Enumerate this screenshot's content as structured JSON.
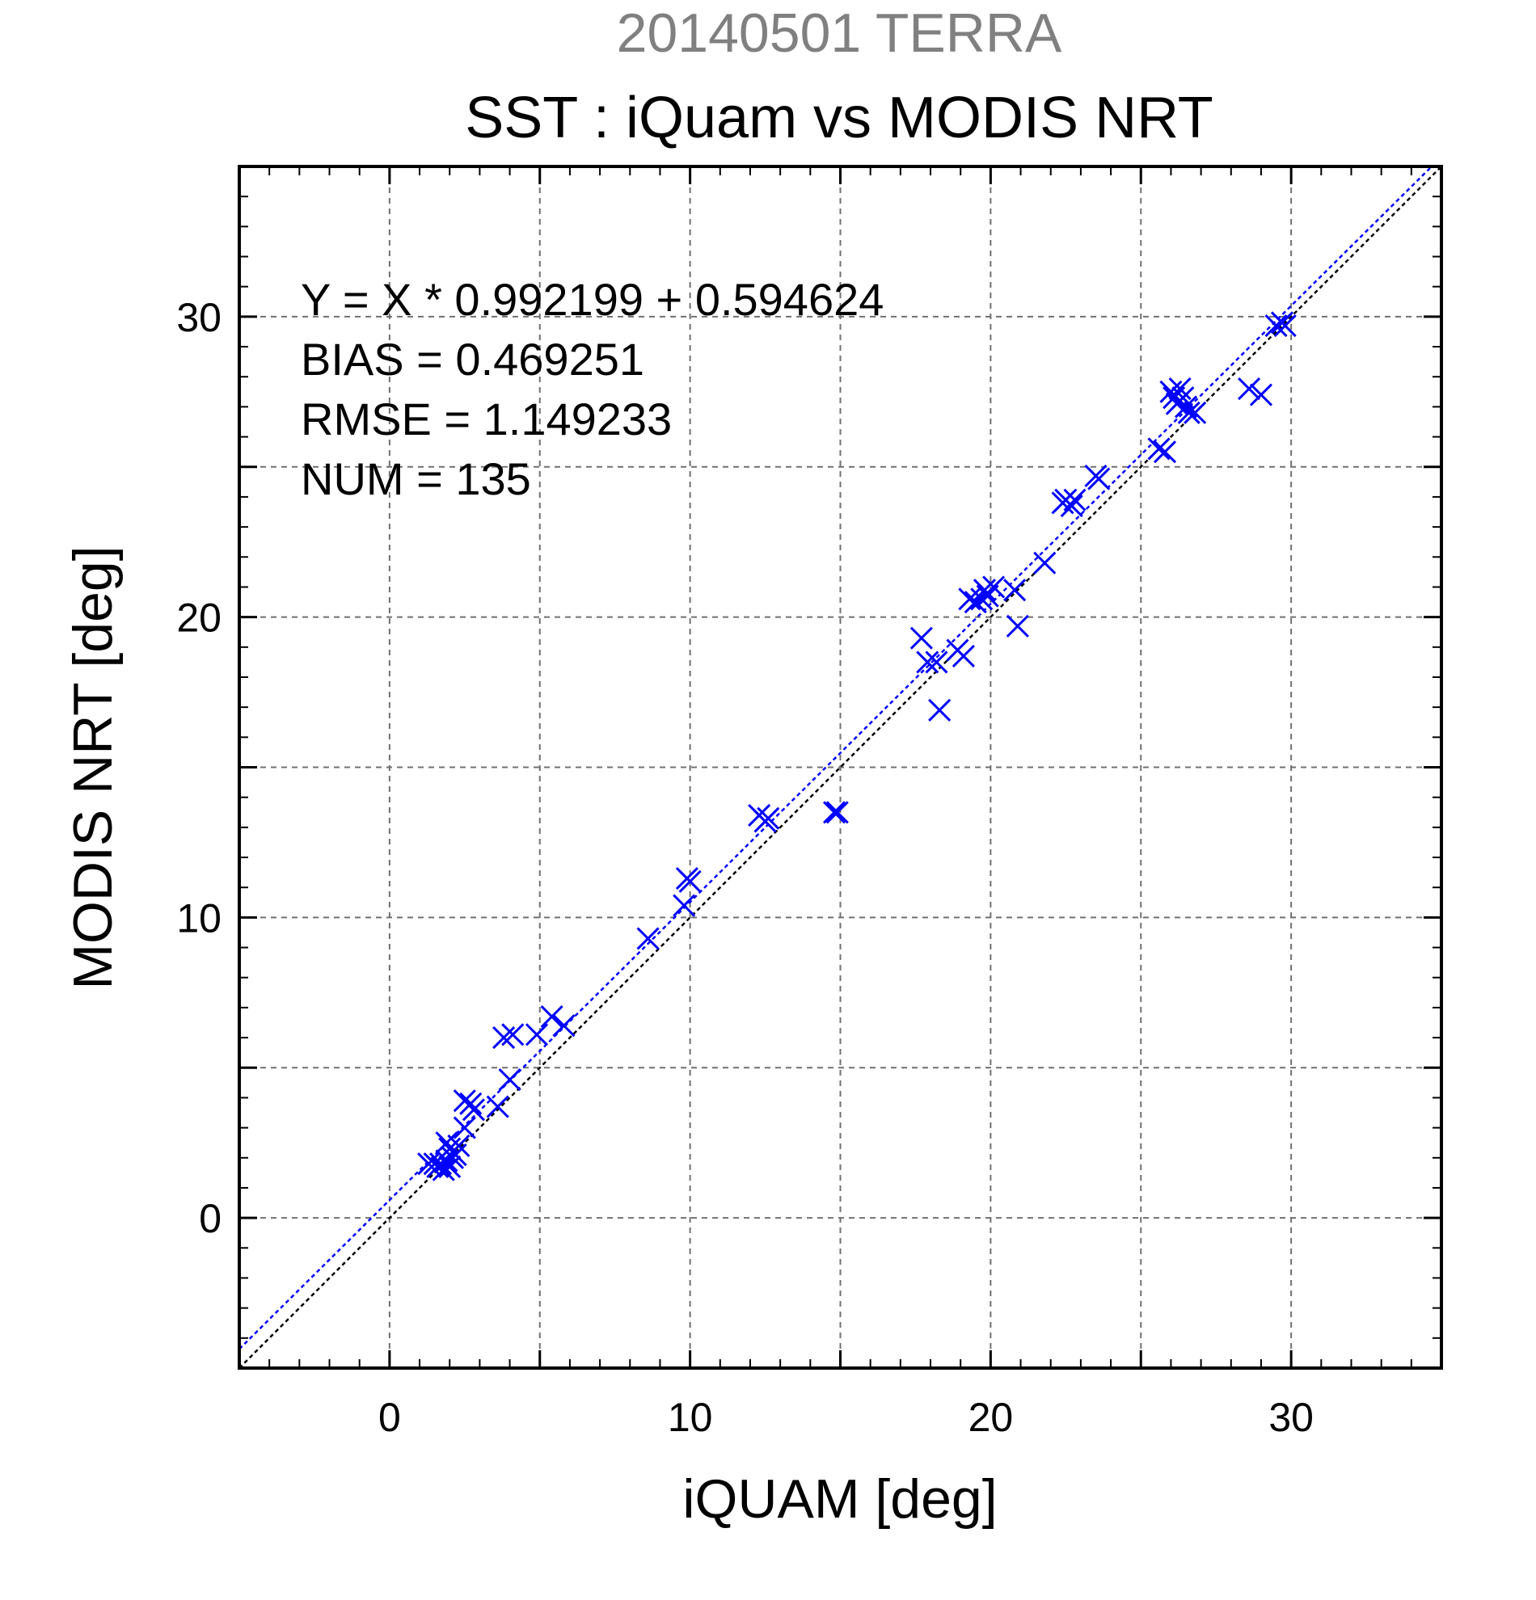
{
  "chart_data": {
    "type": "scatter",
    "supertitle": "20140501 TERRA",
    "title": "SST : iQuam vs MODIS NRT",
    "xlabel": "iQUAM [deg]",
    "ylabel": "MODIS NRT [deg]",
    "xlim": [
      -5,
      35
    ],
    "ylim": [
      -5,
      35
    ],
    "ticks": [
      "0",
      "10",
      "20",
      "30"
    ],
    "grid": true,
    "stats": [
      "Y = X * 0.992199 + 0.594624",
      "BIAS = 0.469251",
      "RMSE = 1.149233",
      "NUM = 135"
    ],
    "fit": {
      "slope": 0.992199,
      "intercept": 0.594624,
      "color": "#0000ff"
    },
    "identity_color": "#000000",
    "marker_color": "#0000ff",
    "points": [
      [
        1.3,
        1.8
      ],
      [
        1.5,
        1.8
      ],
      [
        1.6,
        1.7
      ],
      [
        1.7,
        1.8
      ],
      [
        1.8,
        1.6
      ],
      [
        1.9,
        1.9
      ],
      [
        2.0,
        1.7
      ],
      [
        2.1,
        2.0
      ],
      [
        1.9,
        2.5
      ],
      [
        2.0,
        2.3
      ],
      [
        2.3,
        2.4
      ],
      [
        2.2,
        2.1
      ],
      [
        2.5,
        3.0
      ],
      [
        2.5,
        3.9
      ],
      [
        2.8,
        3.6
      ],
      [
        2.7,
        3.8
      ],
      [
        3.6,
        3.7
      ],
      [
        3.8,
        6.0
      ],
      [
        4.1,
        6.1
      ],
      [
        4.0,
        4.6
      ],
      [
        4.9,
        6.1
      ],
      [
        5.4,
        6.7
      ],
      [
        5.8,
        6.4
      ],
      [
        8.6,
        9.3
      ],
      [
        9.8,
        10.4
      ],
      [
        9.9,
        11.3
      ],
      [
        10.0,
        11.2
      ],
      [
        12.3,
        13.4
      ],
      [
        12.5,
        13.2
      ],
      [
        12.6,
        13.3
      ],
      [
        14.8,
        13.5
      ],
      [
        14.9,
        13.5
      ],
      [
        17.7,
        19.3
      ],
      [
        17.9,
        18.5
      ],
      [
        18.2,
        18.5
      ],
      [
        18.3,
        16.9
      ],
      [
        18.9,
        18.9
      ],
      [
        19.1,
        18.7
      ],
      [
        19.3,
        20.6
      ],
      [
        19.5,
        20.5
      ],
      [
        19.7,
        20.6
      ],
      [
        19.8,
        20.9
      ],
      [
        19.9,
        20.7
      ],
      [
        20.1,
        21.0
      ],
      [
        20.8,
        20.9
      ],
      [
        20.9,
        19.7
      ],
      [
        21.8,
        21.8
      ],
      [
        22.4,
        23.8
      ],
      [
        22.5,
        23.9
      ],
      [
        22.7,
        23.7
      ],
      [
        22.8,
        23.9
      ],
      [
        23.5,
        24.7
      ],
      [
        23.6,
        24.6
      ],
      [
        25.6,
        25.6
      ],
      [
        25.8,
        25.5
      ],
      [
        26.0,
        27.5
      ],
      [
        26.1,
        27.3
      ],
      [
        26.2,
        27.1
      ],
      [
        26.3,
        27.6
      ],
      [
        26.4,
        27.3
      ],
      [
        26.5,
        27.0
      ],
      [
        26.6,
        26.8
      ],
      [
        26.8,
        26.8
      ],
      [
        28.6,
        27.6
      ],
      [
        29.0,
        27.4
      ],
      [
        29.5,
        29.7
      ],
      [
        29.7,
        29.8
      ],
      [
        29.8,
        29.7
      ]
    ]
  }
}
